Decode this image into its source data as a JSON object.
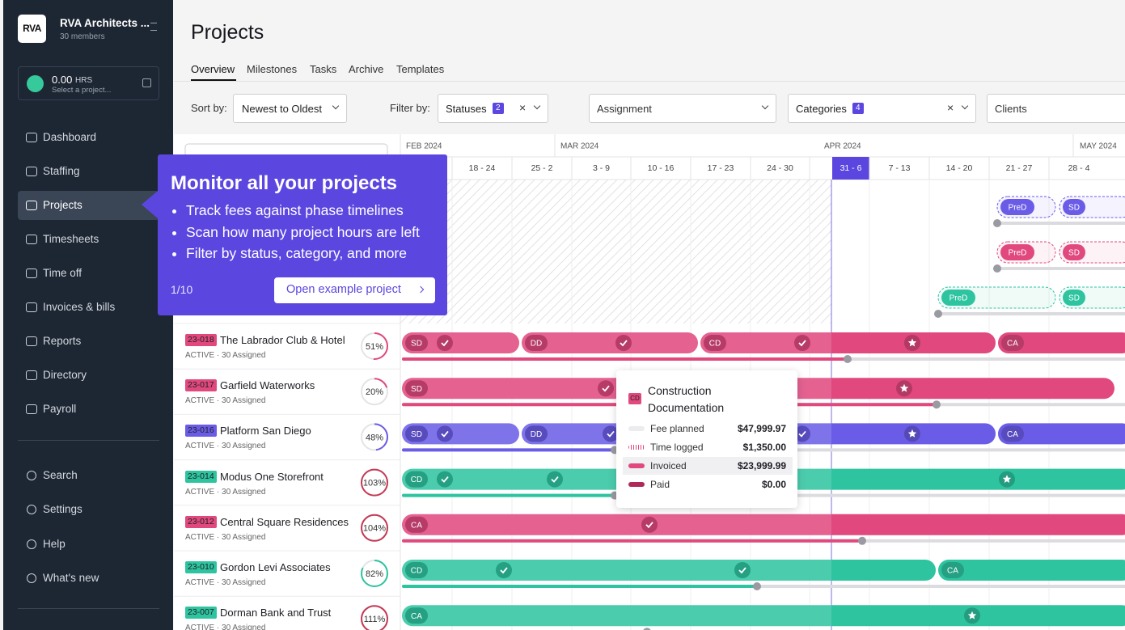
{
  "sidebar": {
    "logo": "RVA",
    "org": "RVA Architects ...",
    "members": "30 members",
    "timer_hours": "0.00",
    "timer_unit": "HRS",
    "timer_placeholder": "Select a project...",
    "nav": [
      "Dashboard",
      "Staffing",
      "Projects",
      "Timesheets",
      "Time off",
      "Invoices & bills",
      "Reports",
      "Directory",
      "Payroll"
    ],
    "active_nav": 2,
    "bottom_nav": [
      "Search",
      "Settings",
      "Help",
      "What's new"
    ]
  },
  "header": {
    "title": "Projects",
    "tabs": [
      "Overview",
      "Milestones",
      "Tasks",
      "Archive",
      "Templates"
    ],
    "active_tab": 0
  },
  "filters": {
    "sort_label": "Sort by:",
    "sort_value": "Newest to Oldest",
    "filter_label": "Filter by:",
    "statuses": "Statuses",
    "statuses_count": "2",
    "assignment": "Assignment",
    "categories": "Categories",
    "categories_count": "4",
    "clients": "Clients"
  },
  "timeline": {
    "months": [
      "FEB 2024",
      "MAR 2024",
      "APR 2024",
      "MAY 2024"
    ],
    "weeks": [
      "18 - 24",
      "25 - 2",
      "3 - 9",
      "10 - 16",
      "17 - 23",
      "24 - 30",
      "31 - 6",
      "7 - 13",
      "14 - 20",
      "21 - 27",
      "28 - 4"
    ],
    "current_week": 6
  },
  "onboarding": {
    "title": "Monitor all your projects",
    "bullets": [
      "Track fees against phase timelines",
      "Scan how many project hours are left",
      "Filter by status, category, and more"
    ],
    "step": "1/10",
    "button": "Open example project"
  },
  "hidden_rows": [
    {
      "color": "#6b5ce7",
      "phases": [
        "PreD",
        "SD"
      ]
    },
    {
      "color": "#e0487e",
      "phases": [
        "PreD",
        "SD"
      ]
    },
    {
      "color": "#2ec4a0",
      "phases": [
        "PreD",
        "SD"
      ]
    }
  ],
  "projects": [
    {
      "code": "23-018",
      "name": "The Labrador Club & Hotel",
      "status": "ACTIVE · 30 Assigned",
      "progress": 51,
      "progress_label": "51%",
      "color": "#e0487e",
      "ring_color": "#e0487e",
      "phases": [
        "SD",
        "DD",
        "CD",
        "CA"
      ]
    },
    {
      "code": "23-017",
      "name": "Garfield Waterworks",
      "status": "ACTIVE · 30 Assigned",
      "progress": 20,
      "progress_label": "20%",
      "color": "#e0487e",
      "ring_color": "#e0487e",
      "phases": [
        "SD"
      ]
    },
    {
      "code": "23-016",
      "name": "Platform San Diego",
      "status": "ACTIVE · 30 Assigned",
      "progress": 48,
      "progress_label": "48%",
      "color": "#6b5ce7",
      "ring_color": "#6b5ce7",
      "phases": [
        "SD",
        "DD",
        "CA"
      ]
    },
    {
      "code": "23-014",
      "name": "Modus One Storefront",
      "status": "ACTIVE · 30 Assigned",
      "progress": 103,
      "progress_label": "103%",
      "color": "#2ec4a0",
      "ring_color": "#c53a55",
      "phases": [
        "CD"
      ]
    },
    {
      "code": "23-012",
      "name": "Central Square Residences",
      "status": "ACTIVE · 30 Assigned",
      "progress": 104,
      "progress_label": "104%",
      "color": "#e0487e",
      "ring_color": "#c53a55",
      "phases": [
        "CA"
      ]
    },
    {
      "code": "23-010",
      "name": "Gordon Levi Associates",
      "status": "ACTIVE · 30 Assigned",
      "progress": 82,
      "progress_label": "82%",
      "color": "#2ec4a0",
      "ring_color": "#2ec4a0",
      "phases": [
        "CD",
        "CA"
      ]
    },
    {
      "code": "23-007",
      "name": "Dorman Bank and Trust",
      "status": "ACTIVE · 30 Assigned",
      "progress": 111,
      "progress_label": "111%",
      "color": "#2ec4a0",
      "ring_color": "#c53a55",
      "phases": [
        "CA"
      ]
    }
  ],
  "phase_tooltip": {
    "code": "CD",
    "title": "Construction Documentation",
    "rows": [
      {
        "label": "Fee planned",
        "amount": "$47,999.97"
      },
      {
        "label": "Time logged",
        "amount": "$1,350.00"
      },
      {
        "label": "Invoiced",
        "amount": "$23,999.99"
      },
      {
        "label": "Paid",
        "amount": "$0.00"
      }
    ]
  }
}
